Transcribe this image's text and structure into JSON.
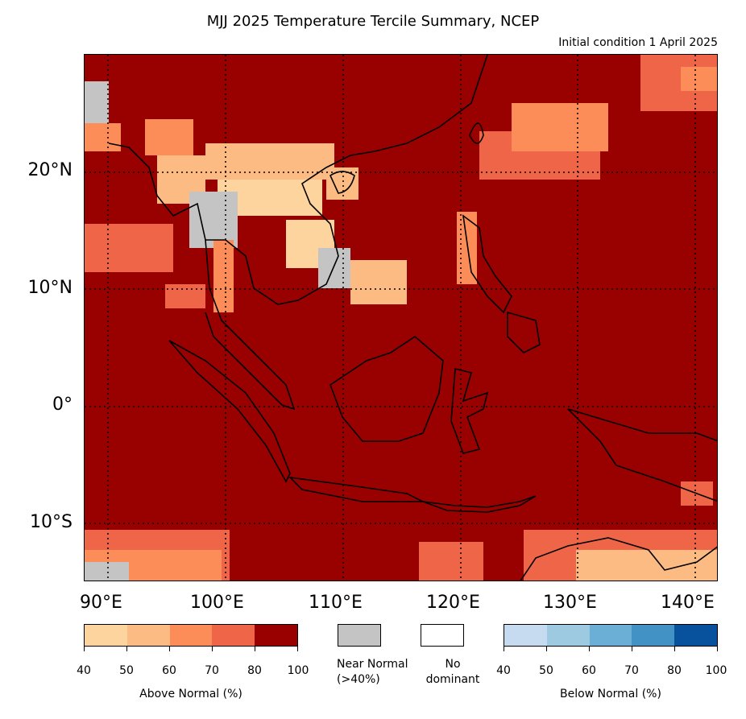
{
  "title": "MJJ 2025 Temperature Tercile Summary, NCEP",
  "subtitle": "Initial condition 1 April 2025",
  "map": {
    "lon_range": [
      88,
      142
    ],
    "lat_range": [
      -15,
      30
    ],
    "lat_ticks": [
      "20°N",
      "10°N",
      "0°",
      "10°S"
    ],
    "lon_ticks": [
      "90°E",
      "100°E",
      "110°E",
      "120°E",
      "130°E",
      "140°E"
    ],
    "background_color": "#990000",
    "grid_style": "dotted"
  },
  "legend": {
    "above_normal": {
      "label": "Above Normal (%)",
      "ticks": [
        "40",
        "50",
        "60",
        "70",
        "80",
        "100"
      ],
      "colors": [
        "#fdd49e",
        "#fdbb84",
        "#fc8d59",
        "#ef6548",
        "#990000"
      ]
    },
    "near_normal": {
      "label": "Near Normal\n(>40%)",
      "color": "#c4c4c4"
    },
    "no_dominant": {
      "label": "No\ndominant",
      "color": "#ffffff"
    },
    "below_normal": {
      "label": "Below Normal (%)",
      "ticks": [
        "40",
        "50",
        "60",
        "70",
        "80",
        "100"
      ],
      "colors": [
        "#c6dbef",
        "#9ecae1",
        "#6baed6",
        "#4292c6",
        "#08519c"
      ]
    }
  }
}
